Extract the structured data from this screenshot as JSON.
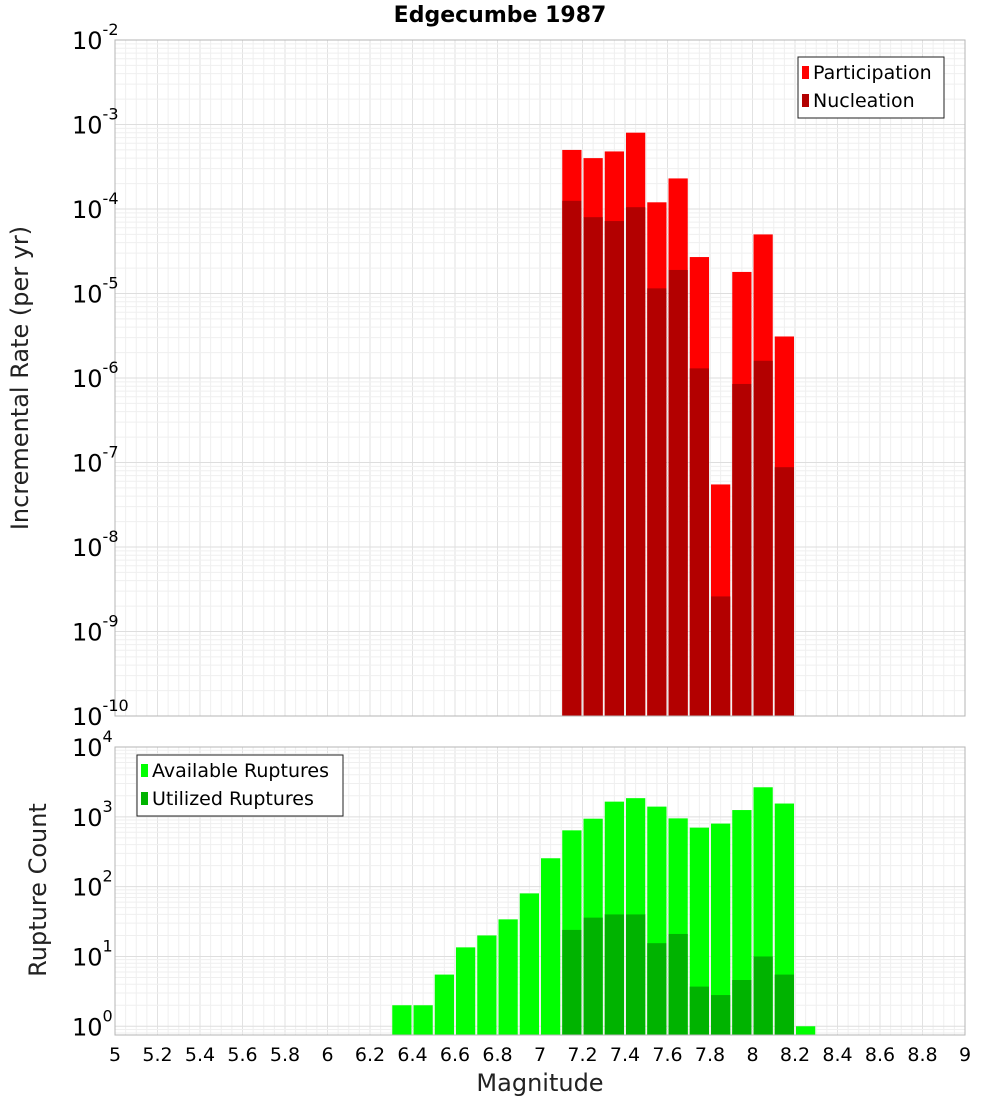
{
  "chart_data": [
    {
      "type": "bar",
      "title": "Edgecumbe 1987",
      "xlabel": "",
      "ylabel": "Incremental Rate (per yr)",
      "yscale": "log",
      "ylim": [
        1e-10,
        0.01
      ],
      "xlim": [
        5,
        9
      ],
      "bar_width": 0.1,
      "grid": true,
      "legend_position": "top-right",
      "overlay": true,
      "y_ticks": [
        {
          "base": "10",
          "exp": "-10",
          "value": 1e-10
        },
        {
          "base": "10",
          "exp": "-9",
          "value": 1e-09
        },
        {
          "base": "10",
          "exp": "-8",
          "value": 1e-08
        },
        {
          "base": "10",
          "exp": "-7",
          "value": 1e-07
        },
        {
          "base": "10",
          "exp": "-6",
          "value": 1e-06
        },
        {
          "base": "10",
          "exp": "-5",
          "value": 1e-05
        },
        {
          "base": "10",
          "exp": "-4",
          "value": 0.0001
        },
        {
          "base": "10",
          "exp": "-3",
          "value": 0.001
        },
        {
          "base": "10",
          "exp": "-2",
          "value": 0.01
        }
      ],
      "x": [
        7.15,
        7.25,
        7.35,
        7.45,
        7.55,
        7.65,
        7.75,
        7.85,
        7.95,
        8.05,
        8.15
      ],
      "series": [
        {
          "name": "Participation",
          "color": "#ff0000",
          "values": [
            0.0005,
            0.0004,
            0.00048,
            0.0008,
            0.00012,
            0.00023,
            2.7e-05,
            5.5e-08,
            1.8e-05,
            5e-05,
            3.1e-06
          ]
        },
        {
          "name": "Nucleation",
          "color": "#b30000",
          "values": [
            0.000125,
            8e-05,
            7.2e-05,
            0.000105,
            1.15e-05,
            1.9e-05,
            1.3e-06,
            2.6e-09,
            8.5e-07,
            1.6e-06,
            8.8e-08
          ]
        }
      ]
    },
    {
      "type": "bar",
      "title": "",
      "xlabel": "Magnitude",
      "ylabel": "Rupture Count",
      "yscale": "log",
      "ylim": [
        0.75,
        10000
      ],
      "xlim": [
        5,
        9
      ],
      "bar_width": 0.1,
      "grid": true,
      "legend_position": "top-left",
      "overlay": true,
      "x_ticks": [
        "5",
        "5.2",
        "5.4",
        "5.6",
        "5.8",
        "6",
        "6.2",
        "6.4",
        "6.6",
        "6.8",
        "7",
        "7.2",
        "7.4",
        "7.6",
        "7.8",
        "8",
        "8.2",
        "8.4",
        "8.6",
        "8.8",
        "9"
      ],
      "y_ticks": [
        {
          "base": "10",
          "exp": "0",
          "value": 1
        },
        {
          "base": "10",
          "exp": "1",
          "value": 10
        },
        {
          "base": "10",
          "exp": "2",
          "value": 100
        },
        {
          "base": "10",
          "exp": "3",
          "value": 1000
        },
        {
          "base": "10",
          "exp": "4",
          "value": 10000
        }
      ],
      "x": [
        6.35,
        6.45,
        6.55,
        6.65,
        6.75,
        6.85,
        6.95,
        7.05,
        7.15,
        7.25,
        7.35,
        7.45,
        7.55,
        7.65,
        7.75,
        7.85,
        7.95,
        8.05,
        8.15,
        8.25
      ],
      "series": [
        {
          "name": "Available Ruptures",
          "color": "#00ff00",
          "values": [
            2,
            2,
            5.5,
            13.5,
            20,
            34,
            80,
            255,
            640,
            940,
            1650,
            1850,
            1400,
            950,
            700,
            800,
            1250,
            2650,
            1550,
            1
          ]
        },
        {
          "name": "Utilized Ruptures",
          "color": "#00b300",
          "values": [
            null,
            null,
            null,
            null,
            null,
            null,
            null,
            null,
            24,
            36,
            40,
            40,
            15.5,
            21,
            3.7,
            2.8,
            4.6,
            10,
            5.5,
            null
          ]
        }
      ]
    }
  ]
}
